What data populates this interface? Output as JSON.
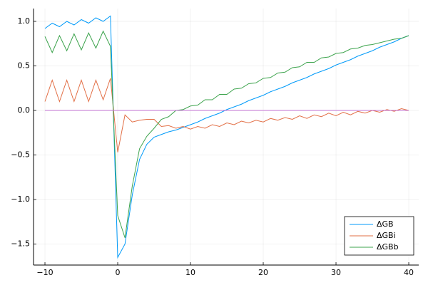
{
  "chart_data": {
    "type": "line",
    "x": [
      -10,
      -9,
      -8,
      -7,
      -6,
      -5,
      -4,
      -3,
      -2,
      -1,
      0,
      1,
      2,
      3,
      4,
      5,
      6,
      7,
      8,
      9,
      10,
      11,
      12,
      13,
      14,
      15,
      16,
      17,
      18,
      19,
      20,
      21,
      22,
      23,
      24,
      25,
      26,
      27,
      28,
      29,
      30,
      31,
      32,
      33,
      34,
      35,
      36,
      37,
      38,
      39,
      40
    ],
    "series": [
      {
        "name": "ΔGB",
        "color": "#009af9",
        "values": [
          0.92,
          0.98,
          0.94,
          1.0,
          0.96,
          1.02,
          0.98,
          1.04,
          1.0,
          1.06,
          -1.65,
          -1.5,
          -0.95,
          -0.55,
          -0.38,
          -0.3,
          -0.27,
          -0.24,
          -0.22,
          -0.19,
          -0.16,
          -0.13,
          -0.09,
          -0.06,
          -0.03,
          0.01,
          0.04,
          0.07,
          0.11,
          0.14,
          0.17,
          0.21,
          0.24,
          0.27,
          0.31,
          0.34,
          0.37,
          0.41,
          0.44,
          0.47,
          0.51,
          0.54,
          0.57,
          0.61,
          0.64,
          0.67,
          0.71,
          0.74,
          0.77,
          0.81,
          0.84
        ]
      },
      {
        "name": "ΔGBi",
        "color": "#e26f46",
        "values": [
          0.1,
          0.34,
          0.1,
          0.34,
          0.1,
          0.34,
          0.1,
          0.34,
          0.12,
          0.36,
          -0.47,
          -0.05,
          -0.13,
          -0.11,
          -0.1,
          -0.1,
          -0.18,
          -0.17,
          -0.2,
          -0.18,
          -0.21,
          -0.18,
          -0.2,
          -0.16,
          -0.18,
          -0.14,
          -0.16,
          -0.12,
          -0.14,
          -0.11,
          -0.13,
          -0.09,
          -0.11,
          -0.08,
          -0.1,
          -0.06,
          -0.09,
          -0.05,
          -0.07,
          -0.03,
          -0.06,
          -0.02,
          -0.05,
          -0.01,
          -0.03,
          0.0,
          -0.02,
          0.01,
          -0.01,
          0.02,
          0.0
        ]
      },
      {
        "name": "ΔGBb",
        "color": "#3ea44e",
        "values": [
          0.83,
          0.65,
          0.84,
          0.67,
          0.86,
          0.68,
          0.87,
          0.7,
          0.89,
          0.72,
          -1.18,
          -1.43,
          -0.85,
          -0.43,
          -0.29,
          -0.2,
          -0.1,
          -0.07,
          0.0,
          0.01,
          0.05,
          0.06,
          0.12,
          0.12,
          0.18,
          0.18,
          0.24,
          0.25,
          0.3,
          0.31,
          0.36,
          0.37,
          0.42,
          0.43,
          0.48,
          0.49,
          0.54,
          0.54,
          0.59,
          0.6,
          0.64,
          0.65,
          0.69,
          0.7,
          0.73,
          0.74,
          0.76,
          0.78,
          0.8,
          0.81,
          0.84
        ]
      },
      {
        "color": "#c271d2",
        "values": [
          0,
          0,
          0,
          0,
          0,
          0,
          0,
          0,
          0,
          0,
          0,
          0,
          0,
          0,
          0,
          0,
          0,
          0,
          0,
          0,
          0,
          0,
          0,
          0,
          0,
          0,
          0,
          0,
          0,
          0,
          0,
          0,
          0,
          0,
          0,
          0,
          0,
          0,
          0,
          0,
          0,
          0,
          0,
          0,
          0,
          0,
          0,
          0,
          0,
          0,
          0
        ]
      }
    ],
    "xlim": [
      -11.57,
      41.37
    ],
    "xticks": [
      {
        "value": -10,
        "label": "−10"
      },
      0,
      10,
      20,
      30,
      40
    ],
    "ylim": [
      -1.736,
      1.144
    ],
    "yticks": [
      {
        "value": -1.5,
        "label": "−1.5"
      },
      {
        "value": -1,
        "label": "−1.0"
      },
      {
        "value": -0.5,
        "label": "−0.5"
      },
      {
        "value": 0,
        "label": "0.0"
      },
      {
        "value": 0.5,
        "label": "0.5"
      },
      {
        "value": 1,
        "label": "1.0"
      }
    ],
    "grid": true,
    "legend": "bottom-right"
  }
}
